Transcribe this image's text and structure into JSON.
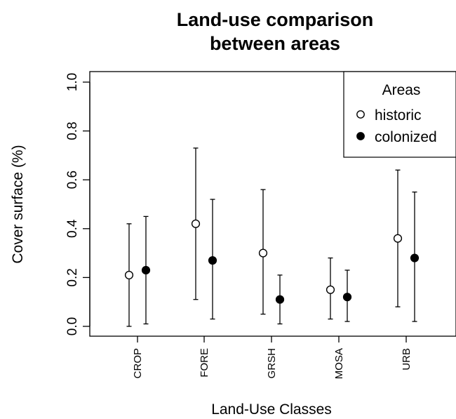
{
  "chart_data": {
    "type": "scatter",
    "title_lines": [
      "Land-use comparison",
      "between areas"
    ],
    "xlabel": "Land-Use Classes",
    "ylabel": "Cover surface (%)",
    "ylim": [
      0.0,
      1.0
    ],
    "yticks": [
      "0.0",
      "0.2",
      "0.4",
      "0.6",
      "0.8",
      "1.0"
    ],
    "categories": [
      "CROP",
      "FORE",
      "GRSH",
      "MOSA",
      "URB"
    ],
    "legend": {
      "title": "Areas",
      "placement": "top-right",
      "entries": [
        "historic",
        "colonized"
      ]
    },
    "series": [
      {
        "name": "historic",
        "marker": "open-circle",
        "values": [
          0.21,
          0.42,
          0.3,
          0.15,
          0.36
        ],
        "lower": [
          0.0,
          0.11,
          0.05,
          0.03,
          0.08
        ],
        "upper": [
          0.42,
          0.73,
          0.56,
          0.28,
          0.64
        ]
      },
      {
        "name": "colonized",
        "marker": "filled-circle",
        "values": [
          0.23,
          0.27,
          0.11,
          0.12,
          0.28
        ],
        "lower": [
          0.01,
          0.03,
          0.01,
          0.02,
          0.02
        ],
        "upper": [
          0.45,
          0.52,
          0.21,
          0.23,
          0.55
        ]
      }
    ]
  }
}
